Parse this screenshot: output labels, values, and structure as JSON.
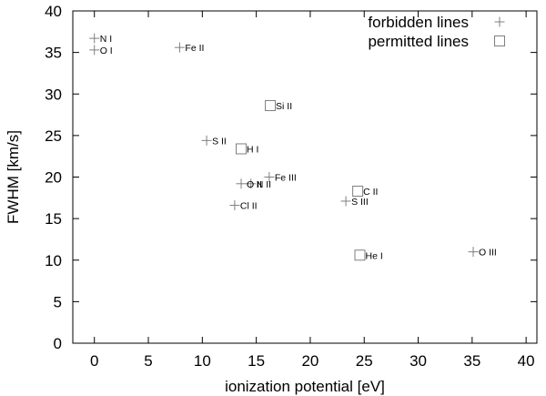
{
  "chart_data": {
    "type": "scatter",
    "title": "",
    "xlabel": "ionization potential [eV]",
    "ylabel": "FWHM [km/s]",
    "xlim": [
      -2,
      41
    ],
    "ylim": [
      0,
      40
    ],
    "xticks": [
      0,
      5,
      10,
      15,
      20,
      25,
      30,
      35,
      40
    ],
    "yticks": [
      0,
      5,
      10,
      15,
      20,
      25,
      30,
      35,
      40
    ],
    "grid": false,
    "legend_placement": "top-right",
    "series": [
      {
        "name": "forbidden lines",
        "marker": "plus",
        "color": "#7f7f7f",
        "points": [
          {
            "x": 0.0,
            "y": 36.7,
            "label": "N I"
          },
          {
            "x": 0.0,
            "y": 35.3,
            "label": "O I"
          },
          {
            "x": 7.9,
            "y": 35.6,
            "label": "Fe II"
          },
          {
            "x": 10.4,
            "y": 24.4,
            "label": "S II"
          },
          {
            "x": 16.2,
            "y": 20.0,
            "label": "Fe III"
          },
          {
            "x": 13.6,
            "y": 19.2,
            "label": "O II"
          },
          {
            "x": 14.5,
            "y": 19.2,
            "label": "N II"
          },
          {
            "x": 13.0,
            "y": 16.6,
            "label": "Cl II"
          },
          {
            "x": 23.3,
            "y": 17.1,
            "label": "S III"
          },
          {
            "x": 35.1,
            "y": 11.0,
            "label": "O III"
          }
        ]
      },
      {
        "name": "permitted lines",
        "marker": "square",
        "color": "#7f7f7f",
        "points": [
          {
            "x": 16.3,
            "y": 28.6,
            "label": "Si II"
          },
          {
            "x": 13.6,
            "y": 23.4,
            "label": "H I"
          },
          {
            "x": 24.4,
            "y": 18.3,
            "label": "C II"
          },
          {
            "x": 24.6,
            "y": 10.6,
            "label": "He I"
          }
        ]
      }
    ]
  }
}
